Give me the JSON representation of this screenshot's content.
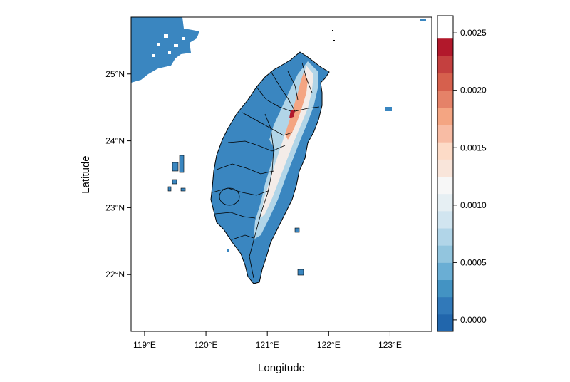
{
  "map": {
    "xlabel": "Longitude",
    "ylabel": "Latitude",
    "x_ticks": [
      {
        "value": 119,
        "label": "119°E"
      },
      {
        "value": 120,
        "label": "120°E"
      },
      {
        "value": 121,
        "label": "121°E"
      },
      {
        "value": 122,
        "label": "122°E"
      },
      {
        "value": 123,
        "label": "123°E"
      }
    ],
    "y_ticks": [
      {
        "value": 22,
        "label": "22°N"
      },
      {
        "value": 23,
        "label": "23°N"
      },
      {
        "value": 24,
        "label": "24°N"
      },
      {
        "value": 25,
        "label": "25°N"
      }
    ],
    "xlim": [
      118.78,
      123.68
    ],
    "ylim": [
      21.15,
      25.85
    ]
  },
  "colorbar": {
    "min": -0.0001,
    "max": 0.00265,
    "step": 0.00015,
    "colors": [
      "#2166ac",
      "#3179b9",
      "#4393c3",
      "#6aaed4",
      "#92c5de",
      "#b1d5e8",
      "#d1e5f0",
      "#e6eff3",
      "#f7f7f7",
      "#f9e5da",
      "#fddbc7",
      "#f8bca4",
      "#f4a582",
      "#e58268",
      "#d6604d",
      "#c4403f",
      "#b2182b"
    ],
    "ticks": [
      {
        "value": 0.0,
        "label": "0.0000"
      },
      {
        "value": 0.0005,
        "label": "0.0005"
      },
      {
        "value": 0.001,
        "label": "0.0010"
      },
      {
        "value": 0.0015,
        "label": "0.0015"
      },
      {
        "value": 0.002,
        "label": "0.0020"
      },
      {
        "value": 0.0025,
        "label": "0.0025"
      }
    ]
  }
}
